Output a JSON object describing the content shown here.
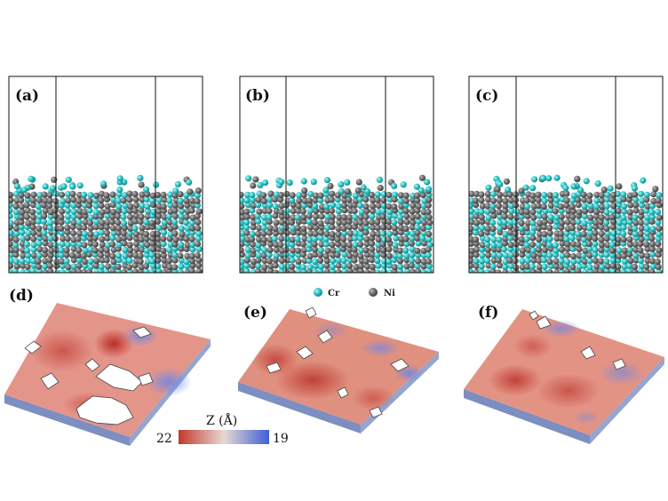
{
  "panels_top": [
    {
      "label": "(a)"
    },
    {
      "label": "(b)"
    },
    {
      "label": "(c)"
    }
  ],
  "panels_bottom": [
    {
      "label": "(d)"
    },
    {
      "label": "(e)"
    },
    {
      "label": "(f)"
    }
  ],
  "legend": {
    "items": [
      {
        "name": "Cr",
        "color": "#2ec4c4"
      },
      {
        "name": "Ni",
        "color": "#6e6e6e"
      }
    ]
  },
  "colorbar": {
    "title": "Z (Å)",
    "min_label": "22",
    "max_label": "19",
    "color_low": "#c0392b",
    "color_mid": "#e8d8d4",
    "color_high": "#3f5fd6"
  }
}
